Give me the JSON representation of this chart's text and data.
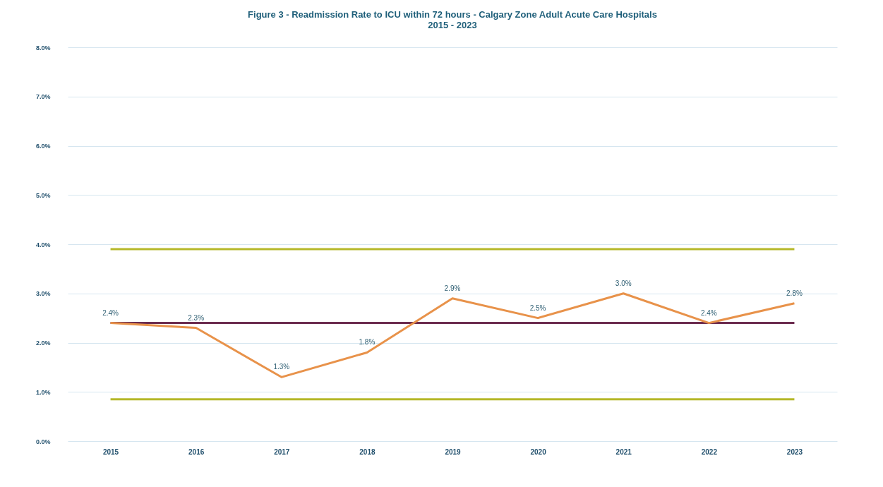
{
  "chart_data": {
    "type": "line",
    "title": "Figure 3 - Readmission Rate to ICU within 72 hours - Calgary Zone Adult Acute Care Hospitals\n2015 - 2023",
    "categories": [
      "2015",
      "2016",
      "2017",
      "2018",
      "2019",
      "2020",
      "2021",
      "2022",
      "2023"
    ],
    "series": [
      {
        "color": "#b5b82a",
        "values": [
          3.9,
          3.9,
          3.9,
          3.9,
          3.9,
          3.9,
          3.9,
          3.9,
          3.9
        ]
      },
      {
        "color": "#b5b82a",
        "values": [
          0.85,
          0.85,
          0.85,
          0.85,
          0.85,
          0.85,
          0.85,
          0.85,
          0.85
        ]
      },
      {
        "color": "#6b2c4f",
        "values": [
          2.4,
          2.4,
          2.4,
          2.4,
          2.4,
          2.4,
          2.4,
          2.4,
          2.4
        ]
      },
      {
        "color": "#e8924a",
        "values": [
          2.4,
          2.3,
          1.3,
          1.8,
          2.9,
          2.5,
          3.0,
          2.4,
          2.8
        ],
        "value_labels": [
          "2.4%",
          "2.3%",
          "1.3%",
          "1.8%",
          "2.9%",
          "2.5%",
          "3.0%",
          "2.4%",
          "2.8%"
        ]
      }
    ],
    "ylim": [
      0,
      8
    ],
    "yticks": [
      {
        "value": 0,
        "label": "0.0%"
      },
      {
        "value": 1,
        "label": "1.0%"
      },
      {
        "value": 2,
        "label": "2.0%"
      },
      {
        "value": 3,
        "label": "3.0%"
      },
      {
        "value": 4,
        "label": "4.0%"
      },
      {
        "value": 5,
        "label": "5.0%"
      },
      {
        "value": 6,
        "label": "6.0%"
      },
      {
        "value": 7,
        "label": "7.0%"
      },
      {
        "value": 8,
        "label": "8.0%"
      }
    ],
    "grid": "y",
    "marker": "none",
    "line_style": "solid"
  }
}
